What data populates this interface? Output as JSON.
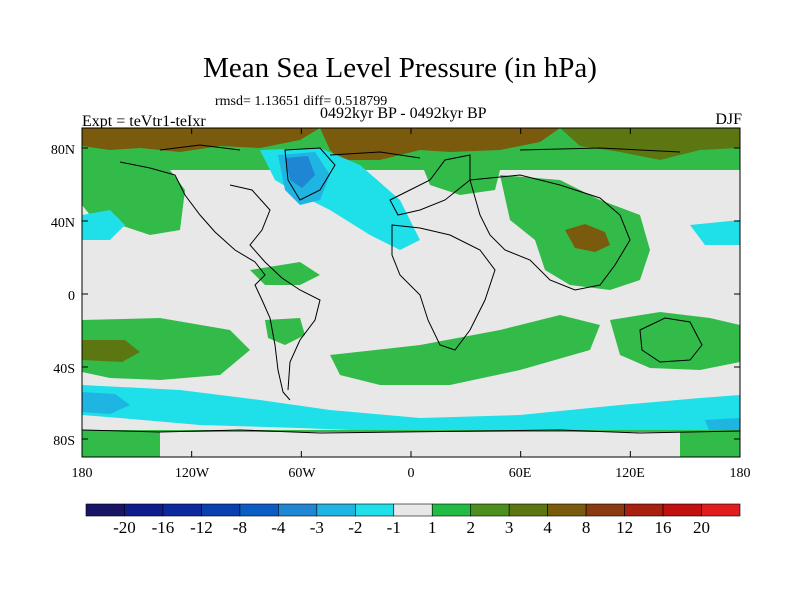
{
  "title": "Mean Sea Level Pressure (in hPa)",
  "stats_line": "rmsd= 1.13651  diff= 0.518799",
  "experiment": "Expt = teVtr1-teIxr",
  "period": "0492kyr BP - 0492kyr BP",
  "season": "DJF",
  "lat_labels": [
    "80N",
    "40N",
    "0",
    "40S",
    "80S"
  ],
  "lon_labels": [
    "180",
    "120W",
    "60W",
    "0",
    "60E",
    "120E",
    "180"
  ],
  "colorbar": {
    "labels": [
      "-20",
      "-16",
      "-12",
      "-8",
      "-4",
      "-3",
      "-2",
      "-1",
      "1",
      "2",
      "3",
      "4",
      "8",
      "12",
      "16",
      "20"
    ],
    "colors": [
      "#1a1466",
      "#101d8c",
      "#0c2a9e",
      "#0a3fb0",
      "#0b5cc4",
      "#1f86d4",
      "#1fb5e2",
      "#1fdfe8",
      "#e8e8e8",
      "#22bb44",
      "#4d8f1e",
      "#5c7712",
      "#7a5a0c",
      "#8a3a10",
      "#a8200e",
      "#c21010",
      "#e01c1c"
    ]
  },
  "palette": {
    "neutral": "#e8e8e8",
    "green": "#33bb4a",
    "olive": "#5c7712",
    "brown": "#7a5a0c",
    "cyan": "#1fdfe8",
    "lightblue": "#1fb5e2",
    "blue": "#1f86d4"
  }
}
